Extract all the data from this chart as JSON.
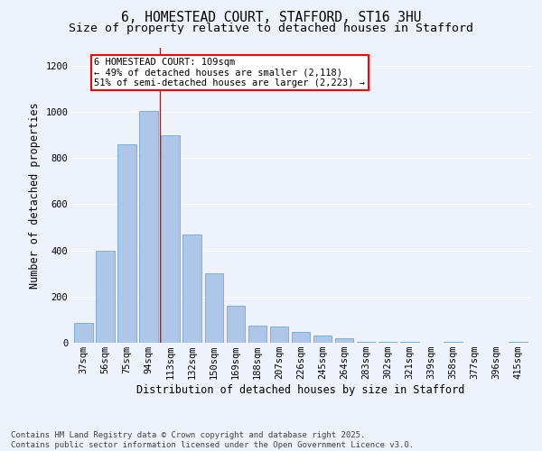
{
  "title": "6, HOMESTEAD COURT, STAFFORD, ST16 3HU",
  "subtitle": "Size of property relative to detached houses in Stafford",
  "xlabel": "Distribution of detached houses by size in Stafford",
  "ylabel": "Number of detached properties",
  "categories": [
    "37sqm",
    "56sqm",
    "75sqm",
    "94sqm",
    "113sqm",
    "132sqm",
    "150sqm",
    "169sqm",
    "188sqm",
    "207sqm",
    "226sqm",
    "245sqm",
    "264sqm",
    "283sqm",
    "302sqm",
    "321sqm",
    "339sqm",
    "358sqm",
    "377sqm",
    "396sqm",
    "415sqm"
  ],
  "values": [
    85,
    400,
    860,
    1005,
    900,
    470,
    300,
    160,
    75,
    70,
    45,
    30,
    20,
    5,
    2,
    2,
    0,
    2,
    1,
    1,
    5
  ],
  "bar_color": "#aec6e8",
  "bar_edge_color": "#5a9fd4",
  "vline_x_index": 4,
  "vline_color": "red",
  "annotation_text": "6 HOMESTEAD COURT: 109sqm\n← 49% of detached houses are smaller (2,118)\n51% of semi-detached houses are larger (2,223) →",
  "annotation_box_color": "white",
  "annotation_box_edge_color": "red",
  "ylim": [
    0,
    1280
  ],
  "yticks": [
    0,
    200,
    400,
    600,
    800,
    1000,
    1200
  ],
  "background_color": "#edf2fb",
  "plot_background": "#edf2fb",
  "grid_color": "white",
  "footer_line1": "Contains HM Land Registry data © Crown copyright and database right 2025.",
  "footer_line2": "Contains public sector information licensed under the Open Government Licence v3.0.",
  "title_fontsize": 10.5,
  "subtitle_fontsize": 9.5,
  "label_fontsize": 8.5,
  "tick_fontsize": 7.5,
  "annotation_fontsize": 7.5,
  "footer_fontsize": 6.5
}
